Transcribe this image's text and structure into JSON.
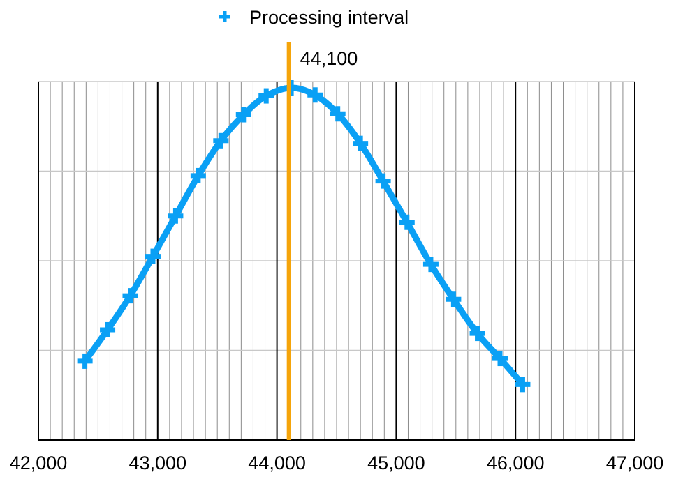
{
  "chart_data": {
    "type": "line",
    "title": "",
    "xlabel": "",
    "ylabel": "",
    "xlim": [
      42000,
      47000
    ],
    "ylim": [
      0,
      4
    ],
    "grid": true,
    "legend_position": "top-center",
    "x_ticks": [
      42000,
      43000,
      44000,
      45000,
      46000,
      47000
    ],
    "x_tick_labels": [
      "42,000",
      "43,000",
      "44,000",
      "45,000",
      "46,000",
      "47,000"
    ],
    "minor_x_step": 100,
    "y_gridlines": [
      1,
      2,
      3
    ],
    "series": [
      {
        "name": "Processing interval",
        "color": "#0aa0f5",
        "marker": "plus",
        "x": [
          42390,
          42580,
          42770,
          42960,
          43150,
          43340,
          43530,
          43720,
          43910,
          44120,
          44320,
          44510,
          44700,
          44890,
          45090,
          45290,
          45480,
          45680,
          45870,
          46060
        ],
        "y": [
          0.88,
          1.23,
          1.61,
          2.05,
          2.5,
          2.95,
          3.34,
          3.63,
          3.84,
          3.93,
          3.85,
          3.64,
          3.31,
          2.89,
          2.43,
          1.96,
          1.57,
          1.19,
          0.91,
          0.62
        ]
      }
    ],
    "reference_line": {
      "x": 44100,
      "label": "44,100",
      "color": "#f5a40a"
    }
  }
}
